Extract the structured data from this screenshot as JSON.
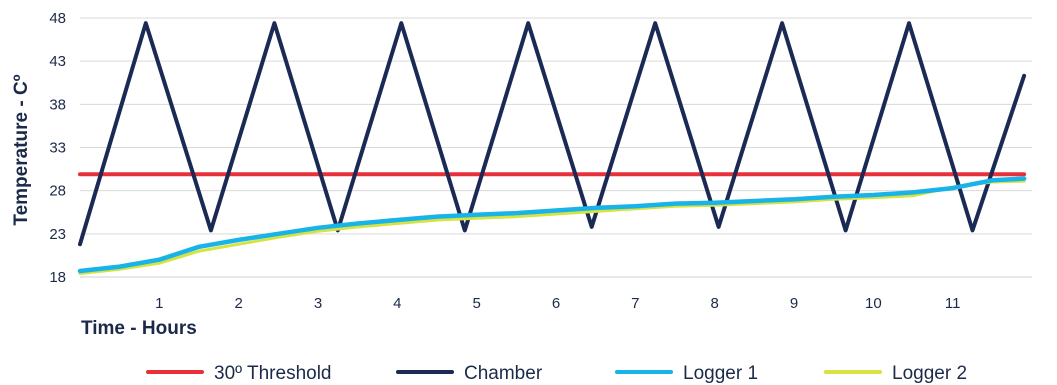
{
  "chart_data": {
    "type": "line",
    "title": "",
    "xlabel": "Time - Hours",
    "ylabel": "Temperature - Cº",
    "xlim": [
      0,
      12
    ],
    "ylim": [
      17.5,
      48
    ],
    "x_ticks": [
      "1",
      "2",
      "3",
      "4",
      "5",
      "6",
      "7",
      "8",
      "9",
      "10",
      "11"
    ],
    "y_ticks": [
      "18",
      "23",
      "28",
      "33",
      "38",
      "43",
      "48"
    ],
    "grid": "horizontal",
    "legend": "bottom",
    "series": [
      {
        "name": "30º Threshold",
        "color": "#e8303a",
        "x": [
          0,
          11.9
        ],
        "y": [
          29.9,
          29.9
        ]
      },
      {
        "name": "Chamber",
        "color": "#1b2a55",
        "x": [
          0,
          0.83,
          1.65,
          2.45,
          3.25,
          4.05,
          4.85,
          5.65,
          6.45,
          7.25,
          8.05,
          8.85,
          9.65,
          10.45,
          11.25,
          11.9
        ],
        "y": [
          21.8,
          47.4,
          23.4,
          47.4,
          23.4,
          47.4,
          23.4,
          47.4,
          23.8,
          47.4,
          23.8,
          47.4,
          23.4,
          47.4,
          23.4,
          41.3
        ]
      },
      {
        "name": "Logger 1",
        "color": "#18b4e9",
        "x": [
          0,
          0.5,
          1.0,
          1.5,
          2.0,
          2.5,
          3.0,
          3.5,
          4.0,
          4.5,
          5.0,
          5.5,
          6.0,
          6.5,
          7.0,
          7.5,
          8.0,
          8.5,
          9.0,
          9.5,
          10.0,
          10.5,
          11.0,
          11.5,
          11.9
        ],
        "y": [
          18.7,
          19.2,
          20.0,
          21.5,
          22.3,
          23.0,
          23.7,
          24.2,
          24.6,
          25.0,
          25.2,
          25.4,
          25.7,
          26.0,
          26.2,
          26.5,
          26.6,
          26.8,
          27.0,
          27.3,
          27.5,
          27.8,
          28.3,
          29.2,
          29.4
        ]
      },
      {
        "name": "Logger 2",
        "color": "#d6e340",
        "x": [
          0,
          0.5,
          1.0,
          1.5,
          2.0,
          2.5,
          3.0,
          3.5,
          4.0,
          4.5,
          5.0,
          5.5,
          6.0,
          6.5,
          7.0,
          7.5,
          8.0,
          8.5,
          9.0,
          9.5,
          10.0,
          10.5,
          11.0,
          11.5,
          11.9
        ],
        "y": [
          18.4,
          18.9,
          19.6,
          21.0,
          21.8,
          22.6,
          23.3,
          23.8,
          24.2,
          24.6,
          24.8,
          25.0,
          25.3,
          25.6,
          25.9,
          26.2,
          26.3,
          26.5,
          26.7,
          27.0,
          27.2,
          27.4,
          28.4,
          29.0,
          29.1
        ]
      }
    ]
  }
}
